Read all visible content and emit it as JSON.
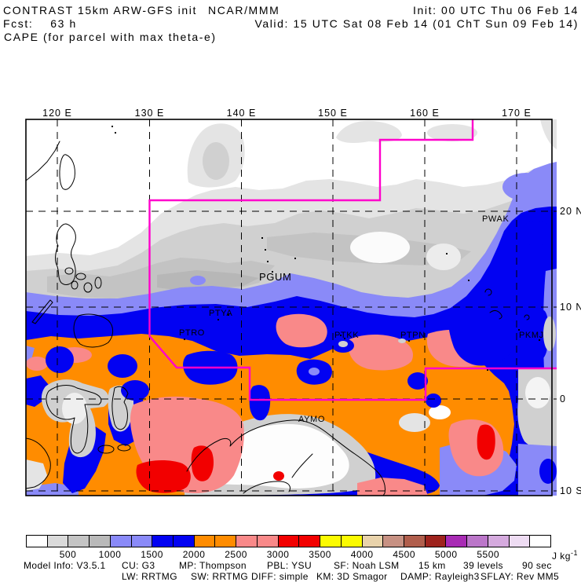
{
  "header": {
    "model": "CONTRAST 15km ARW-GFS init",
    "org": "NCAR/MMM",
    "init": "Init: 00 UTC Thu 06 Feb 14",
    "fcst": "Fcst:    63 h",
    "valid": "Valid: 15 UTC Sat 08 Feb 14 (01 ChT Sun 09 Feb 14)",
    "field_title": "CAPE (for parcel with max theta-e)"
  },
  "axes": {
    "lon": [
      "120 E",
      "130 E",
      "140 E",
      "150 E",
      "160 E",
      "170 E"
    ],
    "lat": [
      "20 N",
      "10 N",
      "0",
      "10 S"
    ]
  },
  "stations": [
    "PWAK",
    "PGUM",
    "PTYA",
    "PTRO",
    "PTKK",
    "PTPN",
    "PKMJ",
    "AYMO"
  ],
  "colorbar": {
    "ticks": [
      "500",
      "1000",
      "1500",
      "2000",
      "2500",
      "3000",
      "3500",
      "4000",
      "4500",
      "5000",
      "5500"
    ],
    "unit_base": "J kg",
    "unit_exp": "-1",
    "cell_colors": [
      "#ffffff",
      "#dadada",
      "#c4c4c4",
      "#b9b9b9",
      "#8a8af8",
      "#8a8af8",
      "#0202f2",
      "#0202f2",
      "#ff8c00",
      "#ff8c00",
      "#f98989",
      "#f98989",
      "#f20000",
      "#f20000",
      "#fbfb00",
      "#fbfb00",
      "#e9d3ab",
      "#c79183",
      "#b05e4c",
      "#9e231d",
      "#a82bb4",
      "#bb76c9",
      "#d5aade",
      "#eedcf3",
      "#ffffff"
    ]
  },
  "footer": {
    "line1": [
      "Model Info: V3.5.1",
      "CU: G3",
      "MP: Thompson",
      "PBL: YSU",
      "SF: Noah LSM",
      "15 km",
      "39 levels",
      "90 sec"
    ],
    "line2": [
      "LW: RRTMG",
      "SW: RRTMG",
      "DIFF: simple",
      "KM: 3D Smagor",
      "DAMP: Rayleigh3",
      "SFLAY: Rev MM5"
    ]
  },
  "palette": {
    "field_white": "#ffffff",
    "gray1": "#e4e4e4",
    "gray2": "#d0d0d0",
    "gray3": "#c3c3c3",
    "gray4": "#b7b7b7",
    "periwinkle": "#8a8af8",
    "blue": "#0202f2",
    "orange": "#ff8c00",
    "salmon": "#f98989",
    "red": "#f20000",
    "magenta": "#ff00cc"
  },
  "chart_data": {
    "type": "heatmap",
    "title": "CAPE (for parcel with max theta-e)",
    "units": "J kg-1",
    "contour_interval": 250,
    "x_ticks": [
      "120 E",
      "130 E",
      "140 E",
      "150 E",
      "160 E",
      "170 E"
    ],
    "y_ticks": [
      "20 N",
      "10 N",
      "0",
      "10 S"
    ],
    "legend": [
      {
        "range": "0-250",
        "color": "#ffffff"
      },
      {
        "range": "250-500",
        "color": "#dadada"
      },
      {
        "range": "500-1000",
        "color": "#bcbcbc"
      },
      {
        "range": "1000-1500",
        "color": "#8a8af8"
      },
      {
        "range": "1500-2000",
        "color": "#0202f2"
      },
      {
        "range": "2000-2500",
        "color": "#ff8c00"
      },
      {
        "range": "2500-3000",
        "color": "#f98989"
      },
      {
        "range": "3000-3500",
        "color": "#f20000"
      },
      {
        "range": "3500-4000",
        "color": "#fbfb00"
      },
      {
        "range": "4000-4250",
        "color": "#e9d3ab"
      },
      {
        "range": "4250-4500",
        "color": "#c79183"
      },
      {
        "range": "4500-4750",
        "color": "#b05e4c"
      },
      {
        "range": "4750-5000",
        "color": "#9e231d"
      },
      {
        "range": "5000-5250",
        "color": "#a82bb4"
      },
      {
        "range": "5250-5500",
        "color": "#bb76c9"
      },
      {
        "range": "5500-5750",
        "color": "#d5aade"
      },
      {
        "range": "5750-6000",
        "color": "#eedcf3"
      },
      {
        "range": ">6000",
        "color": "#ffffff"
      }
    ],
    "annotations": [
      "PWAK",
      "PGUM",
      "PTYA",
      "PTRO",
      "PTKK",
      "PTPN",
      "PKMJ",
      "AYMO"
    ],
    "domain_boundary_color": "#ff00cc"
  }
}
